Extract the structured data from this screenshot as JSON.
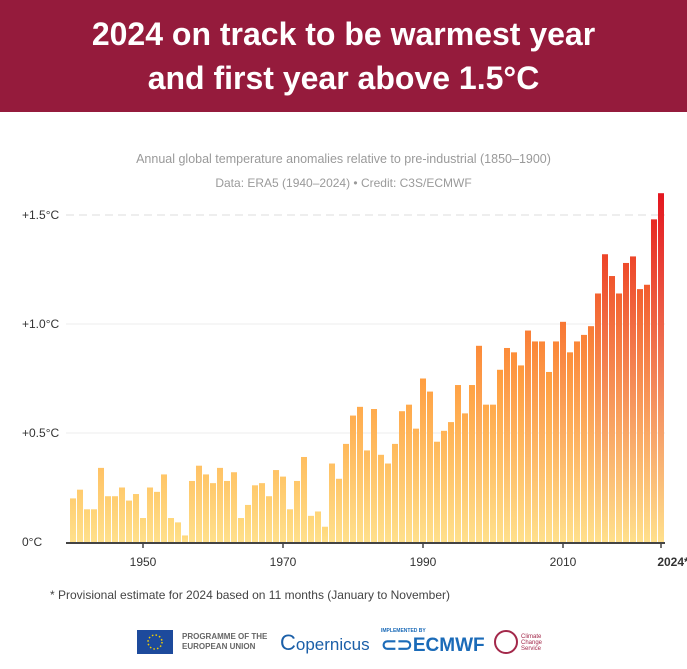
{
  "header": {
    "title_line1": "2024 on track to be warmest year",
    "title_line2": "and first year above 1.5°C"
  },
  "chart_data": {
    "type": "bar",
    "title": "Annual global temperature anomalies relative to pre-industrial (1850–1900)",
    "subtitle": "Data: ERA5 (1940–2024) • Credit: C3S/ECMWF",
    "xlabel": "",
    "ylabel": "",
    "ylim": [
      0,
      1.6
    ],
    "yticks": [
      {
        "v": 0,
        "label": "0°C"
      },
      {
        "v": 0.5,
        "label": "+0.5°C"
      },
      {
        "v": 1.0,
        "label": "+1.0°C"
      },
      {
        "v": 1.5,
        "label": "+1.5°C"
      }
    ],
    "xticks": [
      {
        "v": 1950,
        "label": "1950"
      },
      {
        "v": 1970,
        "label": "1970"
      },
      {
        "v": 1990,
        "label": "1990"
      },
      {
        "v": 2010,
        "label": "2010"
      },
      {
        "v": 2024,
        "label": "2024*"
      }
    ],
    "grid": true,
    "reference_line": 1.5,
    "colors": {
      "low": "#ffd77a",
      "mid": "#ff9a3c",
      "high": "#e3161f",
      "base": "#ffe08c"
    },
    "years_start": 1940,
    "values": [
      0.2,
      0.24,
      0.15,
      0.15,
      0.34,
      0.21,
      0.21,
      0.25,
      0.19,
      0.22,
      0.11,
      0.25,
      0.23,
      0.31,
      0.11,
      0.09,
      0.03,
      0.28,
      0.35,
      0.31,
      0.27,
      0.34,
      0.28,
      0.32,
      0.11,
      0.17,
      0.26,
      0.27,
      0.21,
      0.33,
      0.3,
      0.15,
      0.28,
      0.39,
      0.12,
      0.14,
      0.07,
      0.36,
      0.29,
      0.45,
      0.58,
      0.62,
      0.42,
      0.61,
      0.4,
      0.36,
      0.45,
      0.6,
      0.63,
      0.52,
      0.75,
      0.69,
      0.46,
      0.51,
      0.55,
      0.72,
      0.59,
      0.72,
      0.9,
      0.63,
      0.63,
      0.79,
      0.89,
      0.87,
      0.81,
      0.97,
      0.92,
      0.92,
      0.78,
      0.92,
      1.01,
      0.87,
      0.92,
      0.95,
      0.99,
      1.14,
      1.32,
      1.22,
      1.14,
      1.28,
      1.31,
      1.16,
      1.18,
      1.48,
      1.6
    ]
  },
  "footnote": "* Provisional estimate for 2024 based on 11 months (January to November)",
  "logos": {
    "eu": "PROGRAMME OF THE EUROPEAN UNION",
    "copernicus": "opernicus",
    "ecmwf_small": "IMPLEMENTED BY",
    "ecmwf": "ECMWF",
    "c3s": "Climate Change Service"
  }
}
